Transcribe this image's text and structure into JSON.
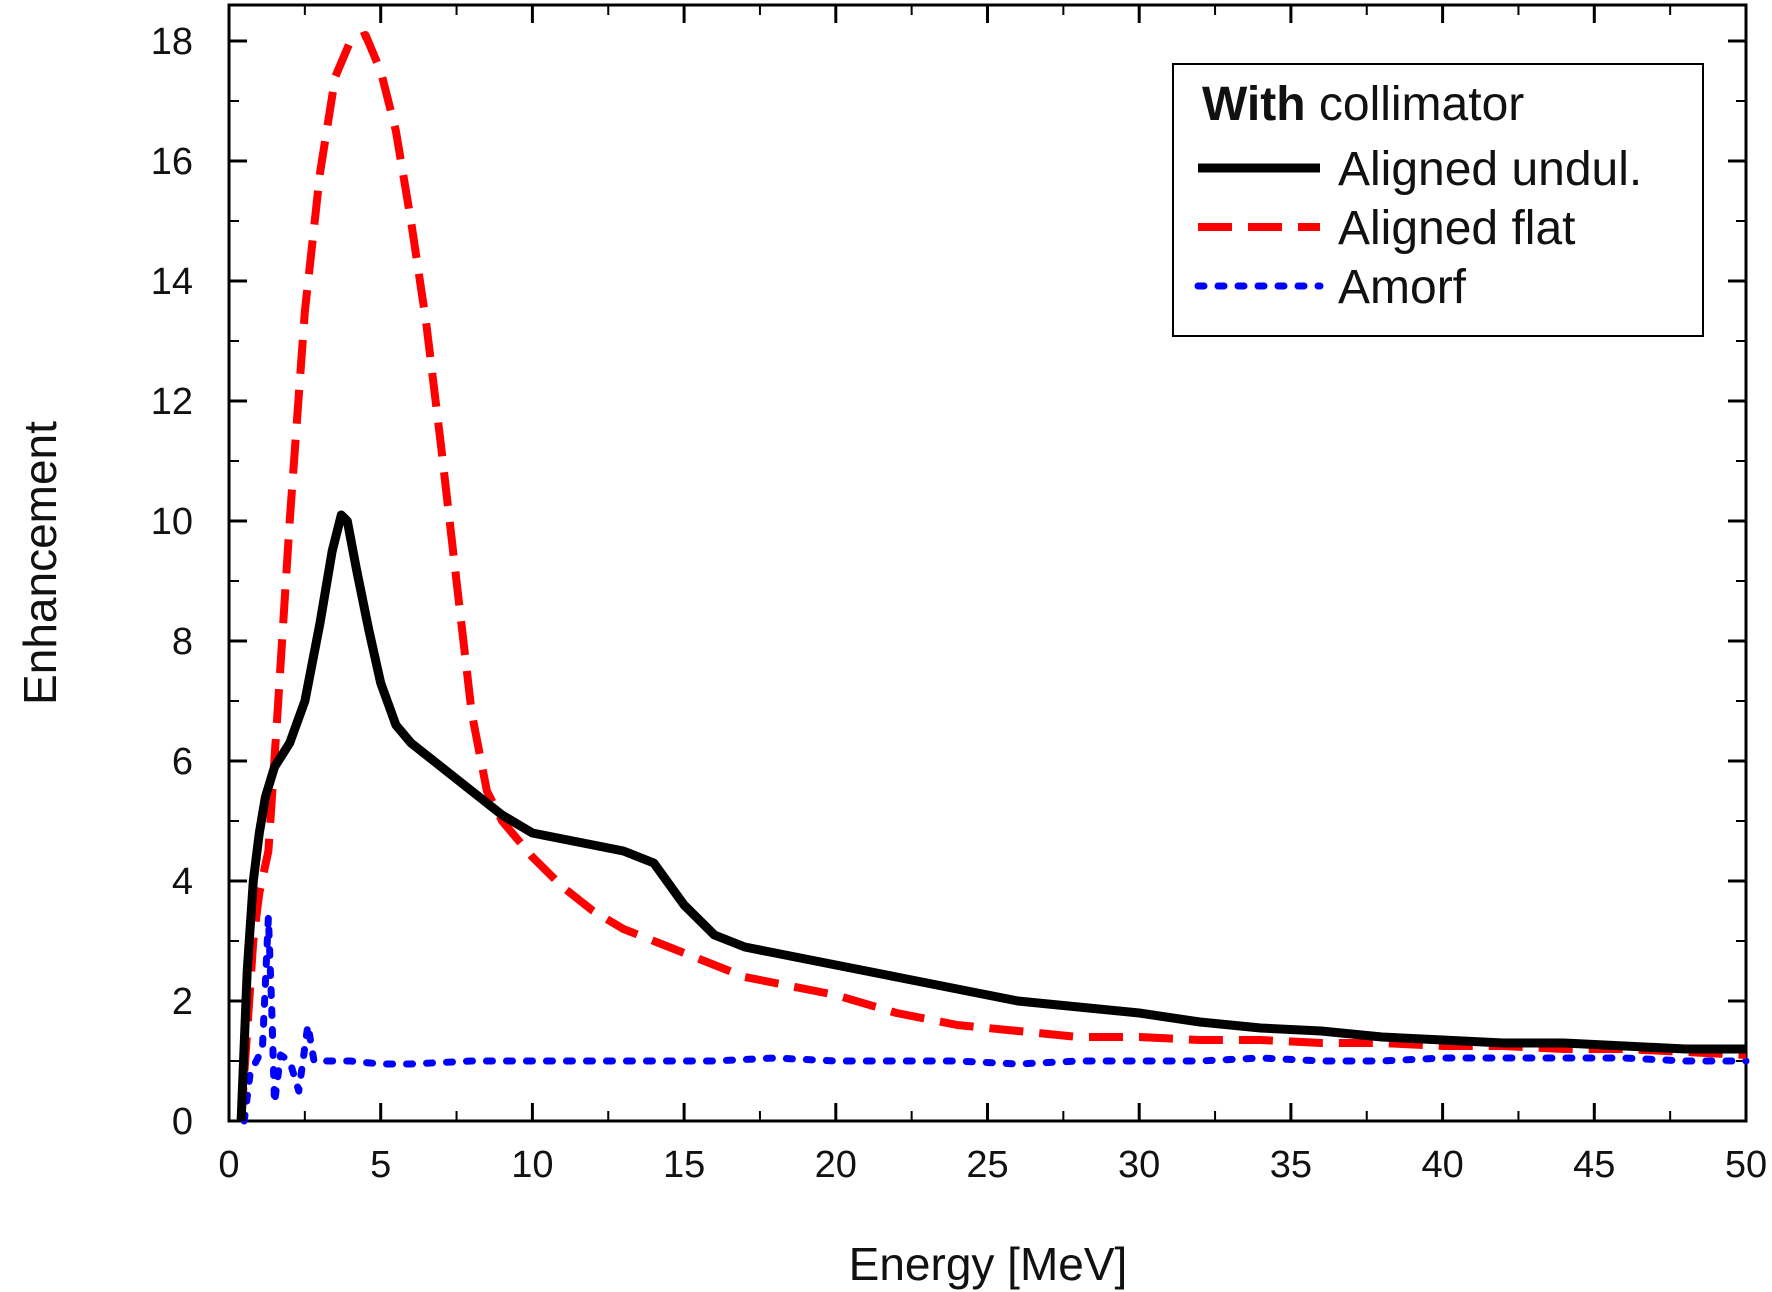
{
  "chart_data": {
    "type": "line",
    "xlabel": "Energy [MeV]",
    "ylabel": "Enhancement",
    "xlim": [
      0,
      50
    ],
    "ylim": [
      0,
      18.6
    ],
    "x_ticks": [
      "0",
      "5",
      "10",
      "15",
      "20",
      "25",
      "30",
      "35",
      "40",
      "45",
      "50"
    ],
    "y_ticks": [
      "0",
      "2",
      "4",
      "6",
      "8",
      "10",
      "12",
      "14",
      "16",
      "18"
    ],
    "grid": false,
    "legend_position": "top-right",
    "legend": {
      "title_bold": "With",
      "title_rest": " collimator"
    },
    "series": [
      {
        "name": "Aligned undul.",
        "color": "#000000",
        "style": "solid",
        "x": [
          0.4,
          0.6,
          0.8,
          1.0,
          1.2,
          1.5,
          2.0,
          2.5,
          3.0,
          3.4,
          3.7,
          3.9,
          4.2,
          4.6,
          5.0,
          5.5,
          6.0,
          7.0,
          8.0,
          9.0,
          10.0,
          11.0,
          12.0,
          13.0,
          14.0,
          15.0,
          16.0,
          17.0,
          18.0,
          20.0,
          22.0,
          24.0,
          26.0,
          28.0,
          30.0,
          32.0,
          34.0,
          36.0,
          38.0,
          40.0,
          42.0,
          44.0,
          46.0,
          48.0,
          50.0
        ],
        "y": [
          0.0,
          2.5,
          4.0,
          4.8,
          5.4,
          5.9,
          6.3,
          7.0,
          8.3,
          9.5,
          10.1,
          10.0,
          9.2,
          8.2,
          7.3,
          6.6,
          6.3,
          5.9,
          5.5,
          5.1,
          4.8,
          4.7,
          4.6,
          4.5,
          4.3,
          3.6,
          3.1,
          2.9,
          2.8,
          2.6,
          2.4,
          2.2,
          2.0,
          1.9,
          1.8,
          1.65,
          1.55,
          1.5,
          1.4,
          1.35,
          1.3,
          1.3,
          1.25,
          1.2,
          1.2
        ]
      },
      {
        "name": "Aligned flat",
        "color": "#ff0000",
        "style": "dashed",
        "x": [
          0.4,
          0.6,
          0.8,
          1.0,
          1.3,
          1.6,
          2.0,
          2.5,
          3.0,
          3.5,
          4.0,
          4.5,
          5.0,
          5.5,
          6.0,
          6.5,
          7.0,
          7.5,
          8.0,
          8.5,
          9.0,
          10.0,
          11.0,
          12.0,
          13.0,
          14.0,
          15.0,
          16.0,
          17.0,
          18.0,
          20.0,
          22.0,
          24.0,
          26.0,
          28.0,
          30.0,
          32.0,
          34.0,
          36.0,
          38.0,
          40.0,
          42.0,
          44.0,
          46.0,
          48.0,
          50.0
        ],
        "y": [
          0.0,
          1.5,
          3.0,
          3.8,
          4.5,
          6.8,
          10.0,
          13.5,
          15.8,
          17.4,
          18.0,
          18.1,
          17.5,
          16.5,
          15.0,
          13.3,
          11.2,
          9.0,
          6.8,
          5.5,
          5.0,
          4.4,
          3.9,
          3.5,
          3.2,
          3.0,
          2.8,
          2.6,
          2.4,
          2.3,
          2.1,
          1.8,
          1.6,
          1.5,
          1.4,
          1.4,
          1.35,
          1.35,
          1.3,
          1.3,
          1.25,
          1.25,
          1.2,
          1.2,
          1.15,
          1.1
        ]
      },
      {
        "name": "Amorf",
        "color": "#0000ff",
        "style": "dotted",
        "x": [
          0.5,
          0.7,
          0.9,
          1.1,
          1.3,
          1.4,
          1.5,
          1.7,
          2.0,
          2.3,
          2.6,
          2.8,
          3.0,
          4.0,
          5.0,
          6.0,
          8.0,
          10.0,
          12.0,
          14.0,
          16.0,
          18.0,
          20.0,
          22.0,
          24.0,
          26.0,
          28.0,
          30.0,
          32.0,
          34.0,
          36.0,
          38.0,
          40.0,
          42.0,
          44.0,
          46.0,
          48.0,
          50.0
        ],
        "y": [
          0.0,
          0.8,
          1.0,
          1.2,
          3.4,
          2.0,
          0.3,
          1.1,
          1.0,
          0.5,
          1.6,
          1.0,
          1.0,
          1.0,
          0.95,
          0.95,
          1.0,
          1.0,
          1.0,
          1.0,
          1.0,
          1.05,
          1.0,
          1.0,
          1.0,
          0.95,
          1.0,
          1.0,
          1.0,
          1.05,
          1.0,
          1.0,
          1.05,
          1.05,
          1.05,
          1.05,
          1.0,
          1.0
        ]
      }
    ]
  }
}
